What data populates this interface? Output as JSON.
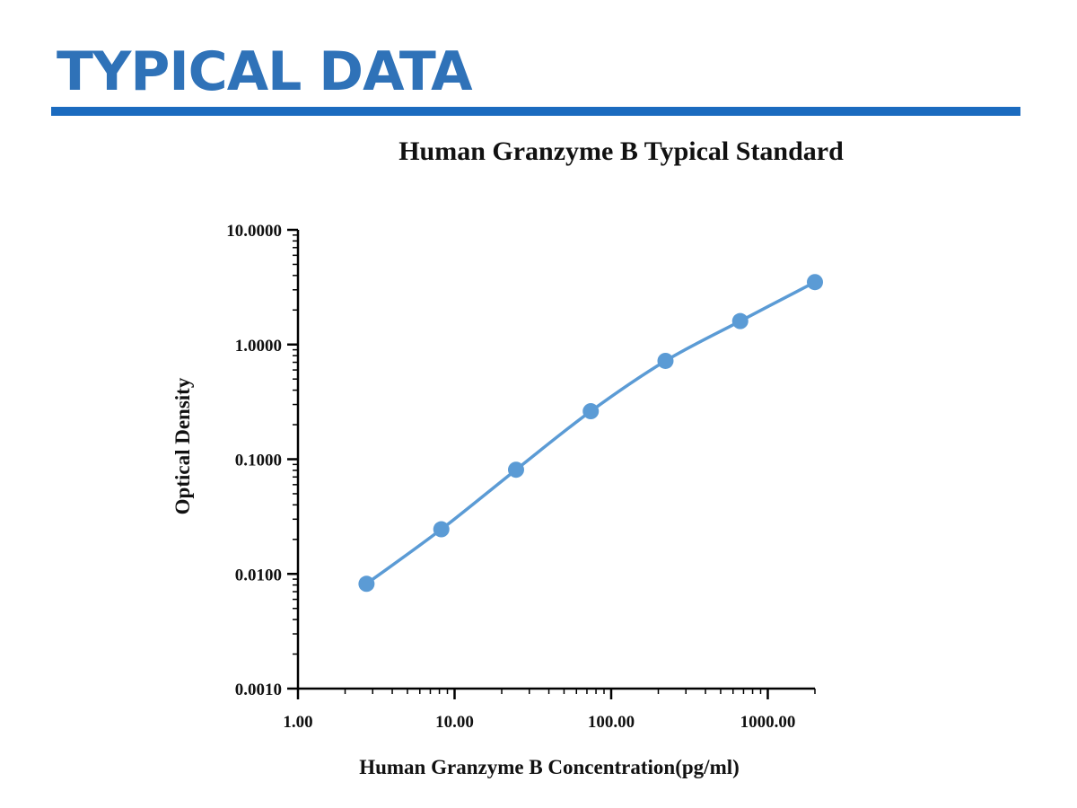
{
  "page": {
    "heading": "TYPICAL DATA",
    "accent_color": "#1b6bbf"
  },
  "chart_data": {
    "type": "line",
    "title": "Human Granzyme B Typical Standard",
    "xlabel": "Human Granzyme B Concentration(pg/ml)",
    "ylabel": "Optical Density",
    "x_scale": "log",
    "y_scale": "log",
    "xlim": [
      1,
      2000
    ],
    "ylim": [
      0.001,
      10
    ],
    "x_ticks": [
      {
        "value": 1,
        "label": "1.00"
      },
      {
        "value": 10,
        "label": "10.00"
      },
      {
        "value": 100,
        "label": "100.00"
      },
      {
        "value": 1000,
        "label": "1000.00"
      }
    ],
    "y_ticks": [
      {
        "value": 0.001,
        "label": "0.0010"
      },
      {
        "value": 0.01,
        "label": "0.0100"
      },
      {
        "value": 0.1,
        "label": "0.1000"
      },
      {
        "value": 1,
        "label": "1.0000"
      },
      {
        "value": 10,
        "label": "10.0000"
      }
    ],
    "grid": false,
    "series_color": "#5b9bd5",
    "series": [
      {
        "x": [
          2.74,
          8.23,
          24.69,
          74.07,
          222.2,
          666.7,
          2000
        ],
        "y": [
          0.0082,
          0.0245,
          0.081,
          0.262,
          0.72,
          1.6,
          3.5
        ]
      }
    ]
  }
}
